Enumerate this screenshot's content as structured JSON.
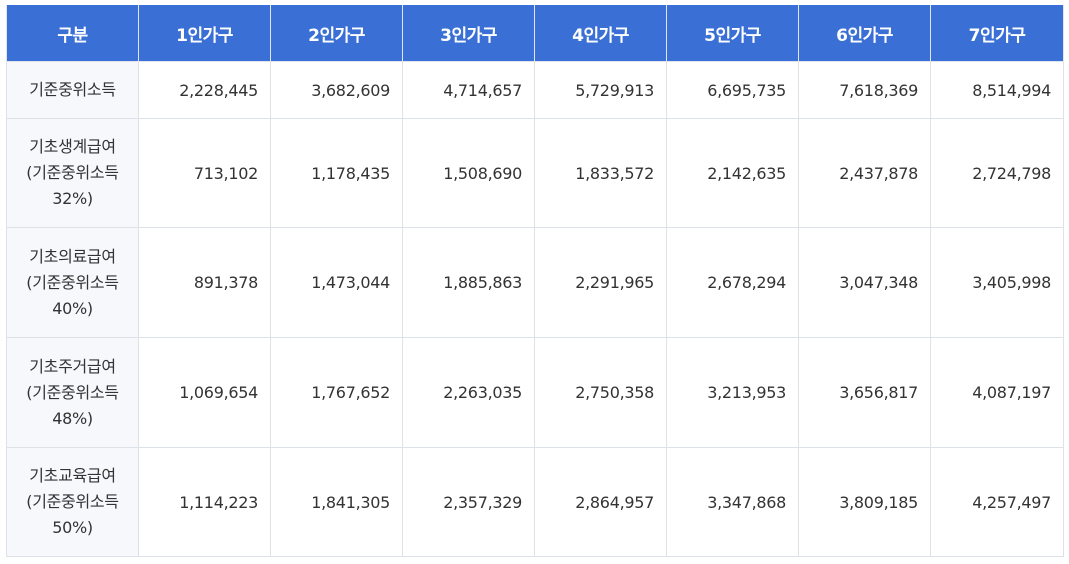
{
  "table": {
    "headers": [
      "구분",
      "1인가구",
      "2인가구",
      "3인가구",
      "4인가구",
      "5인가구",
      "6인가구",
      "7인가구"
    ],
    "rows": [
      {
        "label_lines": [
          "기준중위소득"
        ],
        "values": [
          "2,228,445",
          "3,682,609",
          "4,714,657",
          "5,729,913",
          "6,695,735",
          "7,618,369",
          "8,514,994"
        ]
      },
      {
        "label_lines": [
          "기초생계급여",
          "(기준중위소득",
          "32%)"
        ],
        "values": [
          "713,102",
          "1,178,435",
          "1,508,690",
          "1,833,572",
          "2,142,635",
          "2,437,878",
          "2,724,798"
        ]
      },
      {
        "label_lines": [
          "기초의료급여",
          "(기준중위소득",
          "40%)"
        ],
        "values": [
          "891,378",
          "1,473,044",
          "1,885,863",
          "2,291,965",
          "2,678,294",
          "3,047,348",
          "3,405,998"
        ]
      },
      {
        "label_lines": [
          "기초주거급여",
          "(기준중위소득",
          "48%)"
        ],
        "values": [
          "1,069,654",
          "1,767,652",
          "2,263,035",
          "2,750,358",
          "3,213,953",
          "3,656,817",
          "4,087,197"
        ]
      },
      {
        "label_lines": [
          "기초교육급여",
          "(기준중위소득",
          "50%)"
        ],
        "values": [
          "1,114,223",
          "1,841,305",
          "2,357,329",
          "2,864,957",
          "3,347,868",
          "3,809,185",
          "4,257,497"
        ]
      }
    ]
  },
  "colors": {
    "header_bg": "#3a70d6",
    "header_text": "#ffffff",
    "label_bg": "#f6f8fb",
    "border": "#dde1e8",
    "text": "#333333"
  }
}
